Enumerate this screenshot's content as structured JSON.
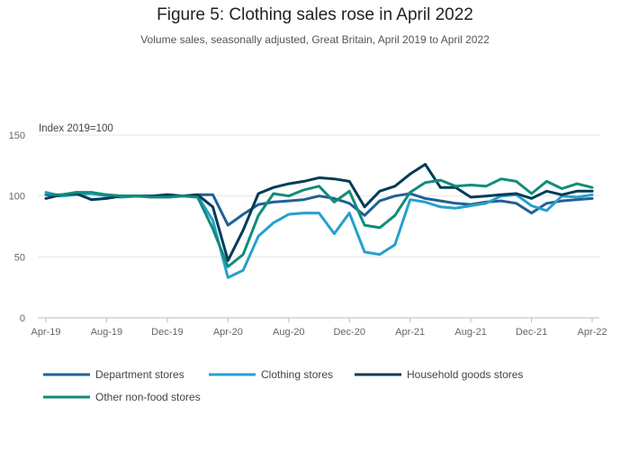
{
  "chart_data": {
    "type": "line",
    "title": "Figure 5: Clothing sales rose in April 2022",
    "subtitle": "Volume sales, seasonally adjusted, Great Britain, April 2019 to April 2022",
    "ylabel": "Index 2019=100",
    "xlabel": "",
    "ylim": [
      0,
      150
    ],
    "yticks": [
      0,
      50,
      100,
      150
    ],
    "xtick_labels": [
      "Apr-19",
      "Aug-19",
      "Dec-19",
      "Apr-20",
      "Aug-20",
      "Dec-20",
      "Apr-21",
      "Aug-21",
      "Dec-21",
      "Apr-22"
    ],
    "grid": true,
    "legend_position": "bottom",
    "x": [
      "Apr-19",
      "May-19",
      "Jun-19",
      "Jul-19",
      "Aug-19",
      "Sep-19",
      "Oct-19",
      "Nov-19",
      "Dec-19",
      "Jan-20",
      "Feb-20",
      "Mar-20",
      "Apr-20",
      "May-20",
      "Jun-20",
      "Jul-20",
      "Aug-20",
      "Sep-20",
      "Oct-20",
      "Nov-20",
      "Dec-20",
      "Jan-21",
      "Feb-21",
      "Mar-21",
      "Apr-21",
      "May-21",
      "Jun-21",
      "Jul-21",
      "Aug-21",
      "Sep-21",
      "Oct-21",
      "Nov-21",
      "Dec-21",
      "Jan-22",
      "Feb-22",
      "Mar-22",
      "Apr-22"
    ],
    "series": [
      {
        "name": "Department stores",
        "color": "#206095",
        "values": [
          101,
          100,
          102,
          102,
          101,
          100,
          100,
          100,
          101,
          100,
          101,
          101,
          76,
          85,
          93,
          95,
          96,
          97,
          100,
          98,
          94,
          84,
          96,
          100,
          102,
          98,
          96,
          94,
          93,
          95,
          96,
          94,
          86,
          94,
          96,
          97,
          98
        ]
      },
      {
        "name": "Clothing stores",
        "color": "#27a0cc",
        "values": [
          103,
          100,
          101,
          102,
          100,
          99,
          100,
          99,
          99,
          100,
          100,
          80,
          33,
          39,
          67,
          78,
          85,
          86,
          86,
          69,
          86,
          54,
          52,
          60,
          97,
          95,
          91,
          90,
          92,
          94,
          100,
          101,
          92,
          88,
          100,
          99,
          101
        ]
      },
      {
        "name": "Household goods stores",
        "color": "#003c57",
        "values": [
          98,
          101,
          102,
          97,
          98,
          100,
          100,
          100,
          101,
          100,
          101,
          91,
          47,
          72,
          102,
          107,
          110,
          112,
          115,
          114,
          112,
          91,
          104,
          108,
          118,
          126,
          107,
          107,
          99,
          100,
          101,
          102,
          98,
          104,
          101,
          104,
          104
        ]
      },
      {
        "name": "Other non-food stores",
        "color": "#118c7b",
        "values": [
          101,
          101,
          103,
          103,
          101,
          100,
          100,
          99,
          99,
          100,
          99,
          73,
          42,
          52,
          84,
          102,
          100,
          105,
          108,
          95,
          104,
          76,
          74,
          84,
          103,
          111,
          113,
          108,
          109,
          108,
          114,
          112,
          102,
          112,
          106,
          110,
          107
        ]
      }
    ]
  }
}
